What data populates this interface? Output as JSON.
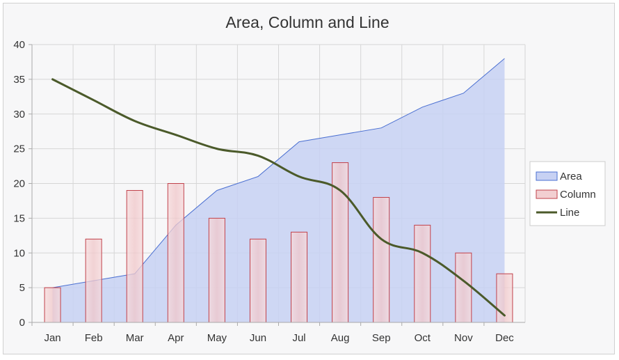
{
  "chart_data": {
    "type": "combo",
    "title": "Area, Column and Line",
    "categories": [
      "Jan",
      "Feb",
      "Mar",
      "Apr",
      "May",
      "Jun",
      "Jul",
      "Aug",
      "Sep",
      "Oct",
      "Nov",
      "Dec"
    ],
    "ylim": [
      0,
      40
    ],
    "yticks": [
      0,
      5,
      10,
      15,
      20,
      25,
      30,
      35,
      40
    ],
    "grid": true,
    "legend_position": "right",
    "series": [
      {
        "name": "Area",
        "type": "area",
        "values": [
          5,
          6,
          7,
          14,
          19,
          21,
          26,
          27,
          28,
          31,
          33,
          38
        ],
        "color": "#4a6fd1",
        "fill": "#c7d1f3"
      },
      {
        "name": "Column",
        "type": "bar",
        "values": [
          5,
          12,
          19,
          20,
          15,
          12,
          13,
          23,
          18,
          14,
          10,
          7
        ],
        "color": "#c0404a",
        "fill": "#f2cfd1"
      },
      {
        "name": "Line",
        "type": "line",
        "values": [
          35,
          32,
          29,
          27,
          25,
          24,
          21,
          19,
          12,
          10,
          6,
          1
        ],
        "color": "#4b5a2a"
      }
    ]
  }
}
